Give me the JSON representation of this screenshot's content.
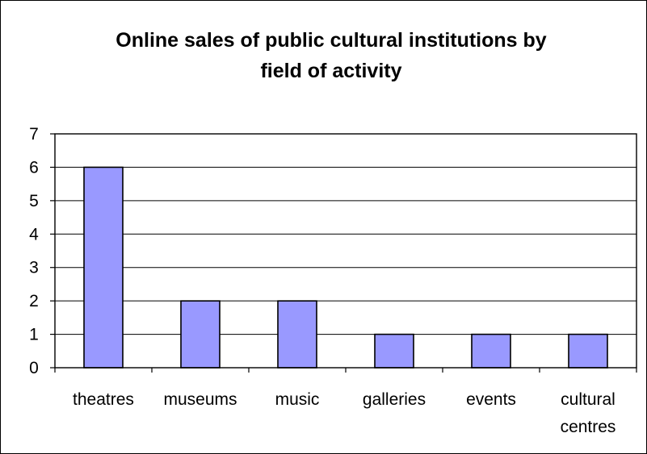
{
  "chart_data": {
    "type": "bar",
    "title_lines": [
      "Online sales of public cultural institutions by",
      "field of activity"
    ],
    "categories": [
      [
        "theatres"
      ],
      [
        "museums"
      ],
      [
        "music"
      ],
      [
        "galleries"
      ],
      [
        "events"
      ],
      [
        "cultural",
        "centres"
      ]
    ],
    "values": [
      6,
      2,
      2,
      1,
      1,
      1
    ],
    "ylim": [
      0,
      7
    ],
    "yticks": [
      "0",
      "1",
      "2",
      "3",
      "4",
      "5",
      "6",
      "7"
    ],
    "xlabel": "",
    "ylabel": "",
    "grid": true,
    "legend": "none",
    "colors": {
      "bar_fill": "#9999ff",
      "bar_stroke": "#000000",
      "grid": "#000000",
      "background": "#ffffff"
    }
  }
}
